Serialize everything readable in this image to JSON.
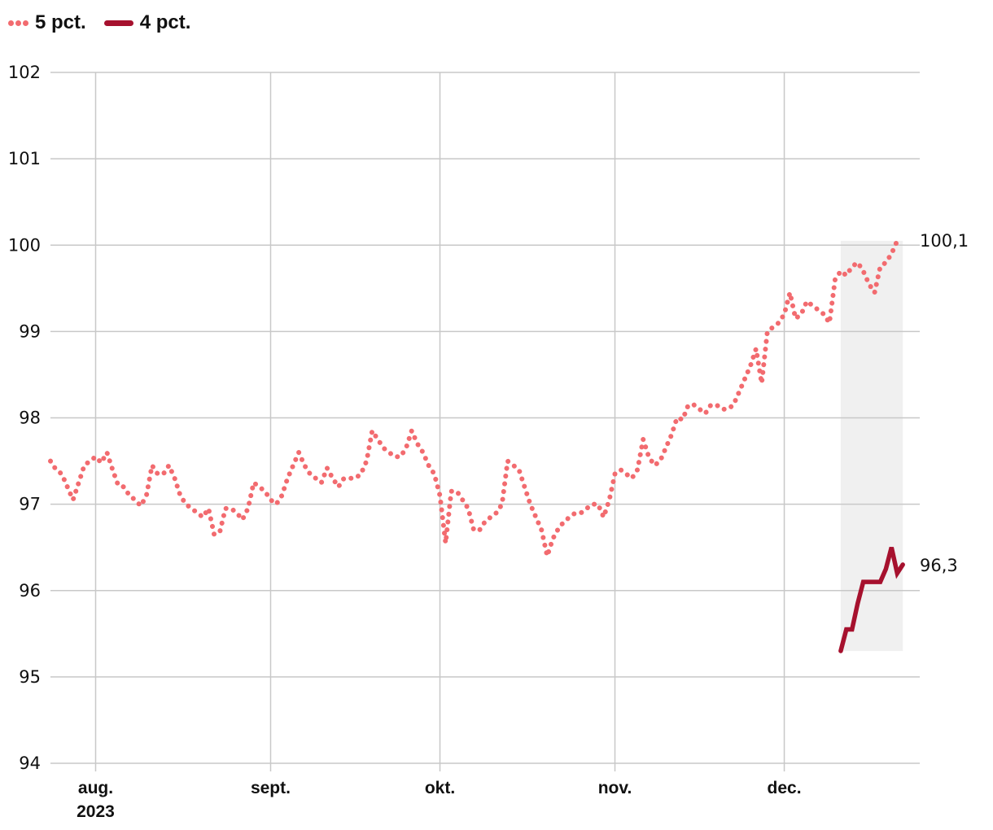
{
  "legend": {
    "series_a": "5 pct.",
    "series_b": "4 pct."
  },
  "colors": {
    "series_a": "#f26b6f",
    "series_b": "#a6112e",
    "shade": "#f0f0f0",
    "grid": "#c8c8c8"
  },
  "chart_data": {
    "type": "line",
    "title": "",
    "xlabel": "",
    "ylabel": "",
    "ylim": [
      94,
      102
    ],
    "yticks": [
      "94",
      "95",
      "96",
      "97",
      "98",
      "99",
      "100",
      "101",
      "102"
    ],
    "xticks": [
      {
        "date": "2023-08-01",
        "label": "aug.",
        "sublabel": "2023"
      },
      {
        "date": "2023-09-01",
        "label": "sept.",
        "sublabel": ""
      },
      {
        "date": "2023-10-01",
        "label": "okt.",
        "sublabel": ""
      },
      {
        "date": "2023-11-01",
        "label": "nov.",
        "sublabel": ""
      },
      {
        "date": "2023-12-01",
        "label": "dec.",
        "sublabel": ""
      }
    ],
    "xlim": [
      "2023-07-24",
      "2023-12-25"
    ],
    "grid": true,
    "legend_position": "top-left",
    "shaded_region": {
      "start": "2023-12-11",
      "end": "2023-12-22"
    },
    "end_labels": {
      "series_a": "100,1",
      "series_b": "96,3"
    },
    "series": [
      {
        "name": "5 pct.",
        "style": "dotted",
        "points": [
          [
            "2023-07-24",
            97.5
          ],
          [
            "2023-07-25",
            97.4
          ],
          [
            "2023-07-26",
            97.35
          ],
          [
            "2023-07-27",
            97.2
          ],
          [
            "2023-07-28",
            97.05
          ],
          [
            "2023-07-29",
            97.25
          ],
          [
            "2023-07-30",
            97.45
          ],
          [
            "2023-07-31",
            97.5
          ],
          [
            "2023-08-01",
            97.55
          ],
          [
            "2023-08-02",
            97.48
          ],
          [
            "2023-08-03",
            97.6
          ],
          [
            "2023-08-04",
            97.4
          ],
          [
            "2023-08-05",
            97.22
          ],
          [
            "2023-08-06",
            97.2
          ],
          [
            "2023-08-07",
            97.1
          ],
          [
            "2023-08-08",
            97.05
          ],
          [
            "2023-08-09",
            96.98
          ],
          [
            "2023-08-10",
            97.1
          ],
          [
            "2023-08-11",
            97.45
          ],
          [
            "2023-08-12",
            97.35
          ],
          [
            "2023-08-13",
            97.35
          ],
          [
            "2023-08-14",
            97.45
          ],
          [
            "2023-08-15",
            97.3
          ],
          [
            "2023-08-16",
            97.1
          ],
          [
            "2023-08-17",
            97.0
          ],
          [
            "2023-08-18",
            96.95
          ],
          [
            "2023-08-19",
            96.9
          ],
          [
            "2023-08-20",
            96.85
          ],
          [
            "2023-08-21",
            96.95
          ],
          [
            "2023-08-22",
            96.65
          ],
          [
            "2023-08-23",
            96.68
          ],
          [
            "2023-08-24",
            96.95
          ],
          [
            "2023-08-25",
            96.95
          ],
          [
            "2023-08-26",
            96.9
          ],
          [
            "2023-08-27",
            96.82
          ],
          [
            "2023-08-28",
            96.95
          ],
          [
            "2023-08-29",
            97.25
          ],
          [
            "2023-08-30",
            97.2
          ],
          [
            "2023-08-31",
            97.15
          ],
          [
            "2023-09-01",
            97.05
          ],
          [
            "2023-09-02",
            97.0
          ],
          [
            "2023-09-03",
            97.1
          ],
          [
            "2023-09-04",
            97.3
          ],
          [
            "2023-09-05",
            97.45
          ],
          [
            "2023-09-06",
            97.6
          ],
          [
            "2023-09-07",
            97.45
          ],
          [
            "2023-09-08",
            97.35
          ],
          [
            "2023-09-09",
            97.3
          ],
          [
            "2023-09-10",
            97.25
          ],
          [
            "2023-09-11",
            97.42
          ],
          [
            "2023-09-12",
            97.3
          ],
          [
            "2023-09-13",
            97.2
          ],
          [
            "2023-09-14",
            97.3
          ],
          [
            "2023-09-15",
            97.3
          ],
          [
            "2023-09-16",
            97.3
          ],
          [
            "2023-09-17",
            97.35
          ],
          [
            "2023-09-18",
            97.5
          ],
          [
            "2023-09-19",
            97.85
          ],
          [
            "2023-09-20",
            97.75
          ],
          [
            "2023-09-21",
            97.65
          ],
          [
            "2023-09-22",
            97.6
          ],
          [
            "2023-09-23",
            97.55
          ],
          [
            "2023-09-24",
            97.55
          ],
          [
            "2023-09-25",
            97.65
          ],
          [
            "2023-09-26",
            97.85
          ],
          [
            "2023-09-27",
            97.7
          ],
          [
            "2023-09-28",
            97.6
          ],
          [
            "2023-09-29",
            97.45
          ],
          [
            "2023-09-30",
            97.35
          ],
          [
            "2023-10-01",
            97.1
          ],
          [
            "2023-10-02",
            96.55
          ],
          [
            "2023-10-03",
            97.15
          ],
          [
            "2023-10-04",
            97.15
          ],
          [
            "2023-10-05",
            97.05
          ],
          [
            "2023-10-06",
            96.95
          ],
          [
            "2023-10-07",
            96.7
          ],
          [
            "2023-10-08",
            96.7
          ],
          [
            "2023-10-09",
            96.8
          ],
          [
            "2023-10-10",
            96.85
          ],
          [
            "2023-10-11",
            96.9
          ],
          [
            "2023-10-12",
            97.0
          ],
          [
            "2023-10-13",
            97.5
          ],
          [
            "2023-10-14",
            97.45
          ],
          [
            "2023-10-15",
            97.4
          ],
          [
            "2023-10-16",
            97.2
          ],
          [
            "2023-10-17",
            97.0
          ],
          [
            "2023-10-18",
            96.85
          ],
          [
            "2023-10-19",
            96.7
          ],
          [
            "2023-10-20",
            96.4
          ],
          [
            "2023-10-21",
            96.6
          ],
          [
            "2023-10-22",
            96.72
          ],
          [
            "2023-10-23",
            96.8
          ],
          [
            "2023-10-24",
            96.85
          ],
          [
            "2023-10-25",
            96.9
          ],
          [
            "2023-10-26",
            96.9
          ],
          [
            "2023-10-27",
            96.95
          ],
          [
            "2023-10-28",
            97.0
          ],
          [
            "2023-10-29",
            97.0
          ],
          [
            "2023-10-30",
            96.85
          ],
          [
            "2023-10-31",
            97.05
          ],
          [
            "2023-11-01",
            97.35
          ],
          [
            "2023-11-02",
            97.4
          ],
          [
            "2023-11-03",
            97.35
          ],
          [
            "2023-11-04",
            97.3
          ],
          [
            "2023-11-05",
            97.4
          ],
          [
            "2023-11-06",
            97.75
          ],
          [
            "2023-11-07",
            97.55
          ],
          [
            "2023-11-08",
            97.45
          ],
          [
            "2023-11-09",
            97.5
          ],
          [
            "2023-11-10",
            97.65
          ],
          [
            "2023-11-11",
            97.8
          ],
          [
            "2023-11-12",
            98.0
          ],
          [
            "2023-11-13",
            97.98
          ],
          [
            "2023-11-14",
            98.15
          ],
          [
            "2023-11-15",
            98.15
          ],
          [
            "2023-11-16",
            98.1
          ],
          [
            "2023-11-17",
            98.05
          ],
          [
            "2023-11-18",
            98.15
          ],
          [
            "2023-11-19",
            98.15
          ],
          [
            "2023-11-20",
            98.1
          ],
          [
            "2023-11-21",
            98.1
          ],
          [
            "2023-11-22",
            98.15
          ],
          [
            "2023-11-23",
            98.3
          ],
          [
            "2023-11-24",
            98.45
          ],
          [
            "2023-11-25",
            98.6
          ],
          [
            "2023-11-26",
            98.8
          ],
          [
            "2023-11-27",
            98.4
          ],
          [
            "2023-11-28",
            99.0
          ],
          [
            "2023-11-29",
            99.05
          ],
          [
            "2023-11-30",
            99.1
          ],
          [
            "2023-12-01",
            99.2
          ],
          [
            "2023-12-02",
            99.45
          ],
          [
            "2023-12-03",
            99.15
          ],
          [
            "2023-12-04",
            99.2
          ],
          [
            "2023-12-05",
            99.35
          ],
          [
            "2023-12-06",
            99.3
          ],
          [
            "2023-12-07",
            99.25
          ],
          [
            "2023-12-08",
            99.2
          ],
          [
            "2023-12-09",
            99.1
          ],
          [
            "2023-12-10",
            99.6
          ],
          [
            "2023-12-11",
            99.7
          ],
          [
            "2023-12-12",
            99.65
          ],
          [
            "2023-12-13",
            99.75
          ],
          [
            "2023-12-14",
            99.8
          ],
          [
            "2023-12-15",
            99.7
          ],
          [
            "2023-12-16",
            99.55
          ],
          [
            "2023-12-17",
            99.45
          ],
          [
            "2023-12-18",
            99.75
          ],
          [
            "2023-12-19",
            99.8
          ],
          [
            "2023-12-20",
            99.9
          ],
          [
            "2023-12-21",
            100.05
          ]
        ]
      },
      {
        "name": "4 pct.",
        "style": "solid",
        "points": [
          [
            "2023-12-11",
            95.3
          ],
          [
            "2023-12-12",
            95.55
          ],
          [
            "2023-12-13",
            95.55
          ],
          [
            "2023-12-14",
            95.85
          ],
          [
            "2023-12-15",
            96.1
          ],
          [
            "2023-12-16",
            96.1
          ],
          [
            "2023-12-17",
            96.1
          ],
          [
            "2023-12-18",
            96.1
          ],
          [
            "2023-12-19",
            96.25
          ],
          [
            "2023-12-20",
            96.5
          ],
          [
            "2023-12-21",
            96.2
          ],
          [
            "2023-12-22",
            96.3
          ]
        ]
      }
    ]
  }
}
